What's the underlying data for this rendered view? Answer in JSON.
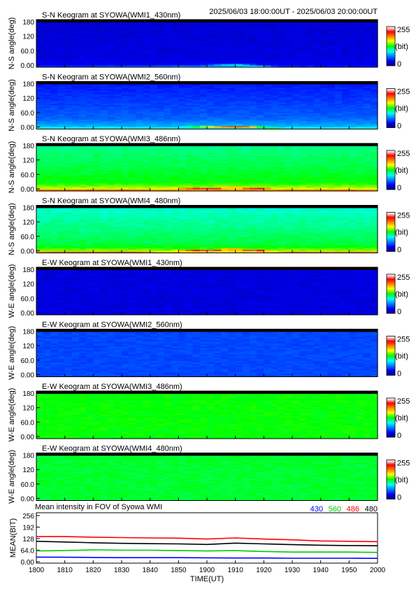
{
  "header": {
    "time_range": "2025/06/03 18:00:00UT - 2025/06/03 20:00:00UT"
  },
  "colorbar": {
    "max_label": "255",
    "unit_label": "(bit)",
    "min_label": "0"
  },
  "chart_data": [
    {
      "type": "heatmap",
      "title": "S-N Keogram at SYOWA(WMI1_430nm)",
      "ylabel": "N-S angle(deg)",
      "yticks": [
        "180",
        "120",
        "60.0",
        "0.00"
      ],
      "ylim": [
        0,
        180
      ],
      "xlim": [
        1800,
        2000
      ],
      "zlim": [
        0,
        255
      ],
      "base_level": 20,
      "level_by_angle": [
        [
          0,
          35
        ],
        [
          10,
          26
        ],
        [
          40,
          22
        ],
        [
          180,
          20
        ]
      ],
      "arc": {
        "x": [
          1800,
          1860,
          1880,
          1900,
          1910,
          1920,
          1930,
          1940,
          1950,
          2000
        ],
        "angle": [
          2,
          2,
          3,
          5,
          6,
          6,
          4,
          2,
          2,
          2
        ],
        "peak": [
          40,
          55,
          60,
          80,
          110,
          120,
          90,
          50,
          40,
          35
        ]
      }
    },
    {
      "type": "heatmap",
      "title": "S-N Keogram at SYOWA(WMI2_560nm)",
      "ylabel": "N-S angle(deg)",
      "yticks": [
        "180",
        "120",
        "60.0",
        "0.00"
      ],
      "ylim": [
        0,
        180
      ],
      "xlim": [
        1800,
        2000
      ],
      "zlim": [
        0,
        255
      ],
      "base_level": 35,
      "level_by_angle": [
        [
          0,
          110
        ],
        [
          10,
          75
        ],
        [
          40,
          55
        ],
        [
          100,
          45
        ],
        [
          140,
          40
        ],
        [
          180,
          35
        ]
      ],
      "arc": {
        "x": [
          1800,
          1860,
          1880,
          1900,
          1910,
          1920,
          1930,
          1940,
          1950,
          2000
        ],
        "angle": [
          3,
          3,
          5,
          8,
          10,
          10,
          7,
          4,
          3,
          3
        ],
        "peak": [
          90,
          100,
          120,
          160,
          200,
          210,
          170,
          120,
          90,
          80
        ]
      }
    },
    {
      "type": "heatmap",
      "title": "S-N Keogram at SYOWA(WMI3_486nm)",
      "ylabel": "N-S angle(deg)",
      "yticks": [
        "180",
        "120",
        "60.0",
        "0.00"
      ],
      "ylim": [
        0,
        180
      ],
      "xlim": [
        1800,
        2000
      ],
      "zlim": [
        0,
        255
      ],
      "base_level": 110,
      "level_by_angle": [
        [
          0,
          200
        ],
        [
          10,
          150
        ],
        [
          30,
          128
        ],
        [
          100,
          118
        ],
        [
          180,
          110
        ]
      ],
      "arc": {
        "x": [
          1800,
          1860,
          1880,
          1900,
          1910,
          1920,
          1930,
          1940,
          1950,
          2000
        ],
        "angle": [
          4,
          4,
          6,
          9,
          12,
          12,
          9,
          5,
          4,
          4
        ],
        "peak": [
          200,
          205,
          215,
          230,
          245,
          245,
          230,
          210,
          200,
          195
        ]
      }
    },
    {
      "type": "heatmap",
      "title": "S-N Keogram at SYOWA(WMI4_480nm)",
      "ylabel": "N-S angle(deg)",
      "yticks": [
        "180",
        "120",
        "60.0",
        "0.00"
      ],
      "ylim": [
        0,
        180
      ],
      "xlim": [
        1800,
        2000
      ],
      "zlim": [
        0,
        255
      ],
      "base_level": 100,
      "level_by_angle": [
        [
          0,
          175
        ],
        [
          10,
          140
        ],
        [
          30,
          120
        ],
        [
          100,
          110
        ],
        [
          180,
          100
        ]
      ],
      "arc": {
        "x": [
          1800,
          1860,
          1880,
          1900,
          1910,
          1920,
          1930,
          1940,
          1950,
          2000
        ],
        "angle": [
          4,
          4,
          6,
          9,
          12,
          12,
          9,
          5,
          4,
          4
        ],
        "peak": [
          195,
          200,
          210,
          230,
          250,
          250,
          230,
          205,
          195,
          190
        ]
      }
    },
    {
      "type": "heatmap",
      "title": "E-W Keogram at SYOWA(WMI1_430nm)",
      "ylabel": "W-E angle(deg)",
      "yticks": [
        "180",
        "120",
        "60.0",
        "0.00"
      ],
      "ylim": [
        0,
        180
      ],
      "xlim": [
        1800,
        2000
      ],
      "zlim": [
        0,
        255
      ],
      "base_level": 22,
      "level_by_angle": [
        [
          0,
          22
        ],
        [
          180,
          22
        ]
      ]
    },
    {
      "type": "heatmap",
      "title": "E-W Keogram at SYOWA(WMI2_560nm)",
      "ylabel": "W-E angle(deg)",
      "yticks": [
        "180",
        "120",
        "60.0",
        "0.00"
      ],
      "ylim": [
        0,
        180
      ],
      "xlim": [
        1800,
        2000
      ],
      "zlim": [
        0,
        255
      ],
      "base_level": 48,
      "level_by_angle": [
        [
          0,
          48
        ],
        [
          180,
          48
        ]
      ]
    },
    {
      "type": "heatmap",
      "title": "E-W Keogram at SYOWA(WMI3_486nm)",
      "ylabel": "W-E angle(deg)",
      "yticks": [
        "180",
        "120",
        "60.0",
        "0.00"
      ],
      "ylim": [
        0,
        180
      ],
      "xlim": [
        1800,
        2000
      ],
      "zlim": [
        0,
        255
      ],
      "base_level": 128,
      "level_by_angle": [
        [
          0,
          128
        ],
        [
          180,
          128
        ]
      ]
    },
    {
      "type": "heatmap",
      "title": "E-W Keogram at SYOWA(WMI4_480nm)",
      "ylabel": "W-E angle(deg)",
      "yticks": [
        "180",
        "120",
        "60.0",
        "0.00"
      ],
      "ylim": [
        0,
        180
      ],
      "xlim": [
        1800,
        2000
      ],
      "zlim": [
        0,
        255
      ],
      "base_level": 122,
      "level_by_angle": [
        [
          0,
          122
        ],
        [
          180,
          122
        ]
      ]
    },
    {
      "type": "line",
      "title": "Mean intensity in FOV of Syowa WMI",
      "xlabel": "TIME(UT)",
      "ylabel": "MEAN(BIT)",
      "xlim": [
        1800,
        2000
      ],
      "ylim": [
        0,
        256
      ],
      "xticks": [
        "1800",
        "1810",
        "1820",
        "1830",
        "1840",
        "1850",
        "1900",
        "1910",
        "1920",
        "1930",
        "1940",
        "1950",
        "2000"
      ],
      "yticks": [
        "256",
        "192",
        "128",
        "64.0",
        "0.00"
      ],
      "x": [
        1800,
        1810,
        1820,
        1830,
        1840,
        1850,
        1900,
        1910,
        1920,
        1930,
        1940,
        1950,
        2000
      ],
      "series": [
        {
          "name": "430",
          "color": "#0000ff",
          "values": [
            25,
            24,
            23,
            22,
            22,
            22,
            21,
            20,
            20,
            19,
            19,
            19,
            18
          ]
        },
        {
          "name": "560",
          "color": "#00cc00",
          "values": [
            58,
            60,
            64,
            62,
            62,
            60,
            58,
            60,
            55,
            52,
            52,
            52,
            50
          ]
        },
        {
          "name": "486",
          "color": "#ff0000",
          "values": [
            135,
            135,
            132,
            130,
            128,
            127,
            122,
            128,
            122,
            118,
            112,
            110,
            108
          ]
        },
        {
          "name": "480",
          "color": "#000000",
          "values": [
            110,
            106,
            102,
            99,
            97,
            96,
            93,
            100,
            96,
            92,
            89,
            87,
            86
          ]
        }
      ]
    }
  ]
}
